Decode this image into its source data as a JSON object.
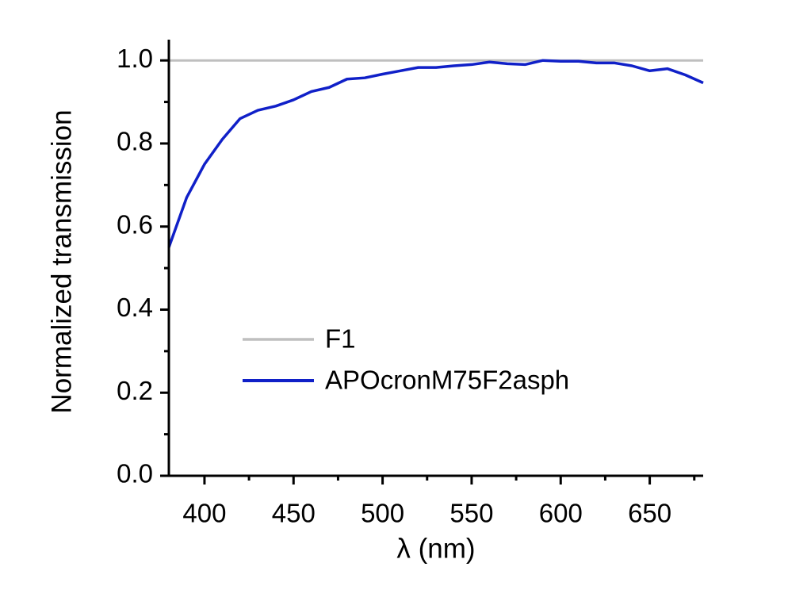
{
  "chart_data": {
    "type": "line",
    "x_label": "λ (nm)",
    "y_label": "Normalized transmission",
    "x": [
      380,
      390,
      400,
      410,
      420,
      430,
      440,
      450,
      460,
      470,
      480,
      490,
      500,
      510,
      520,
      530,
      540,
      550,
      560,
      570,
      580,
      590,
      600,
      610,
      620,
      630,
      640,
      650,
      660,
      670,
      680
    ],
    "series": [
      {
        "name": "F1",
        "color": "#bfbfbf",
        "values": [
          1,
          1,
          1,
          1,
          1,
          1,
          1,
          1,
          1,
          1,
          1,
          1,
          1,
          1,
          1,
          1,
          1,
          1,
          1,
          1,
          1,
          1,
          1,
          1,
          1,
          1,
          1,
          1,
          1,
          1,
          1
        ]
      },
      {
        "name": "APOcronM75F2asph",
        "color": "#1020c8",
        "values": [
          0.55,
          0.67,
          0.75,
          0.81,
          0.86,
          0.88,
          0.89,
          0.905,
          0.925,
          0.935,
          0.955,
          0.958,
          0.967,
          0.975,
          0.983,
          0.983,
          0.987,
          0.99,
          0.996,
          0.992,
          0.99,
          1.0,
          0.998,
          0.998,
          0.994,
          0.994,
          0.987,
          0.975,
          0.98,
          0.965,
          0.946
        ]
      }
    ],
    "xlim": [
      380,
      680
    ],
    "xticks": [
      400,
      450,
      500,
      550,
      600,
      650
    ],
    "ylim": [
      0,
      1.05
    ],
    "yticks": [
      {
        "value": 0,
        "label": "0.0"
      },
      0.2,
      0.4,
      0.6,
      0.8,
      {
        "value": 1,
        "label": "1.0"
      }
    ]
  }
}
